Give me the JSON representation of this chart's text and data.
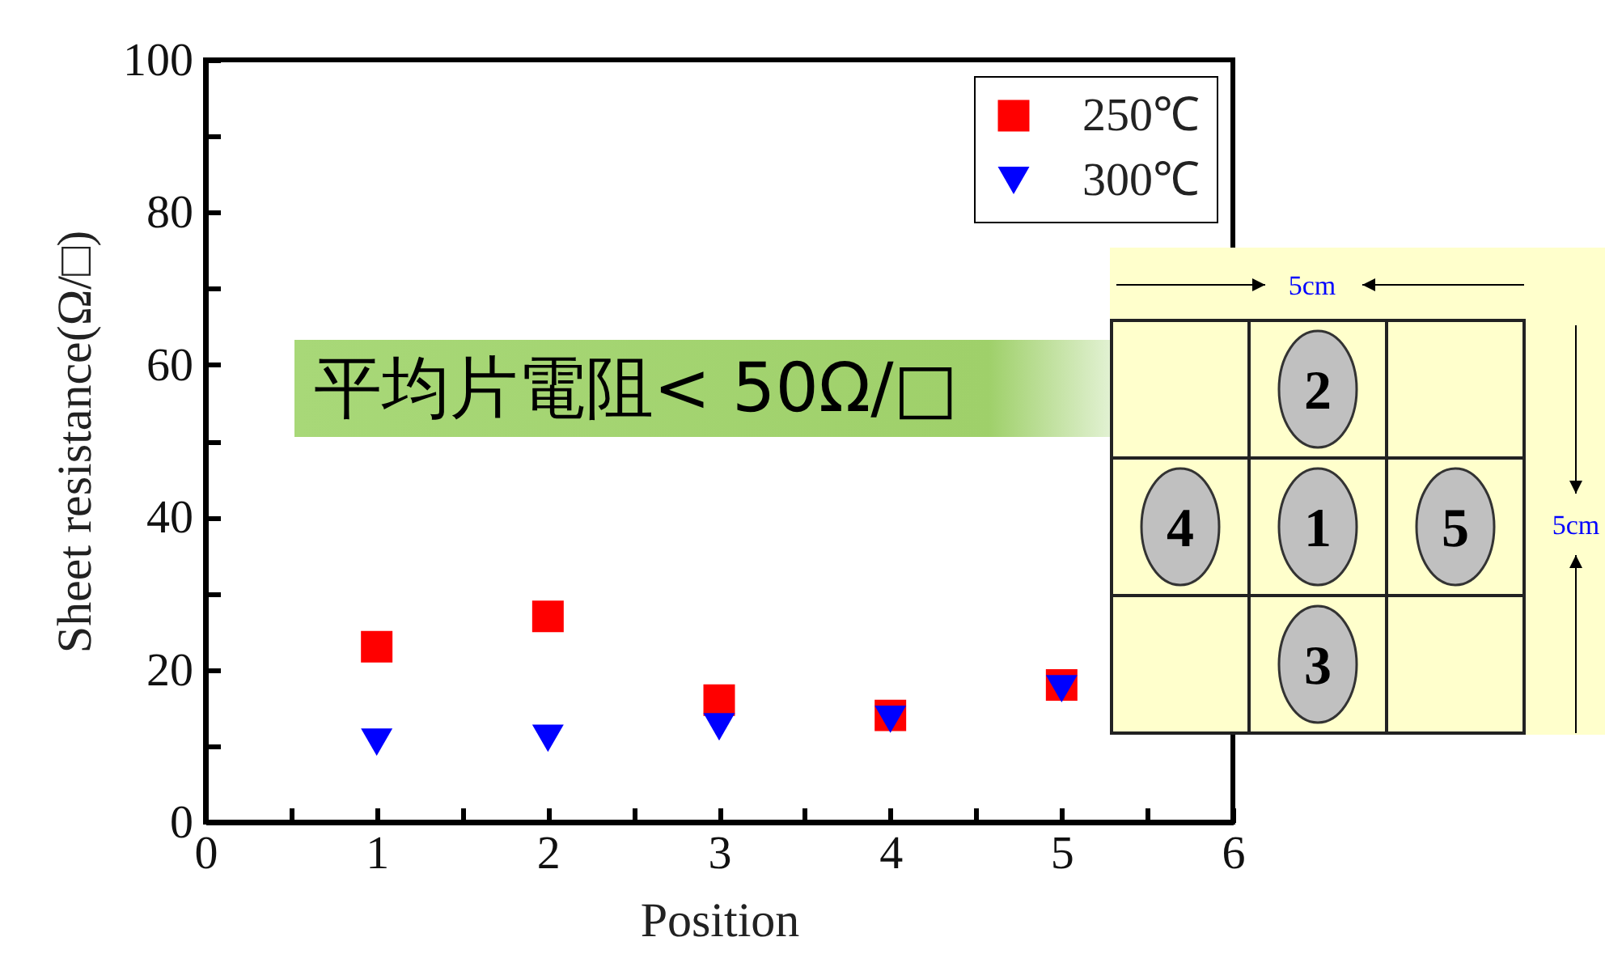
{
  "chart_data": {
    "type": "scatter",
    "xlabel": "Position",
    "ylabel": "Sheet resistance(Ω/□)",
    "x": [
      1,
      2,
      3,
      4,
      5
    ],
    "series": [
      {
        "name": "250℃",
        "color": "#ff0000",
        "marker": "square",
        "values": [
          23,
          27,
          16,
          14,
          18
        ]
      },
      {
        "name": "300℃",
        "color": "#0000ff",
        "marker": "triangle",
        "values": [
          10.5,
          11,
          12.5,
          13.5,
          17.5
        ]
      }
    ],
    "xlim": [
      0,
      6
    ],
    "xticks": [
      0,
      {
        "value": 0.5,
        "label": null
      },
      1,
      {
        "value": 1.5,
        "label": null
      },
      2,
      {
        "value": 2.5,
        "label": null
      },
      3,
      {
        "value": 3.5,
        "label": null
      },
      4,
      {
        "value": 4.5,
        "label": null
      },
      5,
      {
        "value": 5.5,
        "label": null
      },
      6
    ],
    "ylim": [
      0,
      100
    ],
    "yticks": [
      0,
      {
        "value": 10,
        "label": null
      },
      20,
      {
        "value": 30,
        "label": null
      },
      40,
      {
        "value": 50,
        "label": null
      },
      60,
      {
        "value": 70,
        "label": null
      },
      80,
      {
        "value": 90,
        "label": null
      },
      100
    ],
    "grid": false,
    "legend": "top right",
    "annotations": [
      "平均片電阻< 50Ω/□",
      "5cm",
      "5cm",
      "2",
      "4",
      "1",
      "5",
      "3"
    ]
  }
}
